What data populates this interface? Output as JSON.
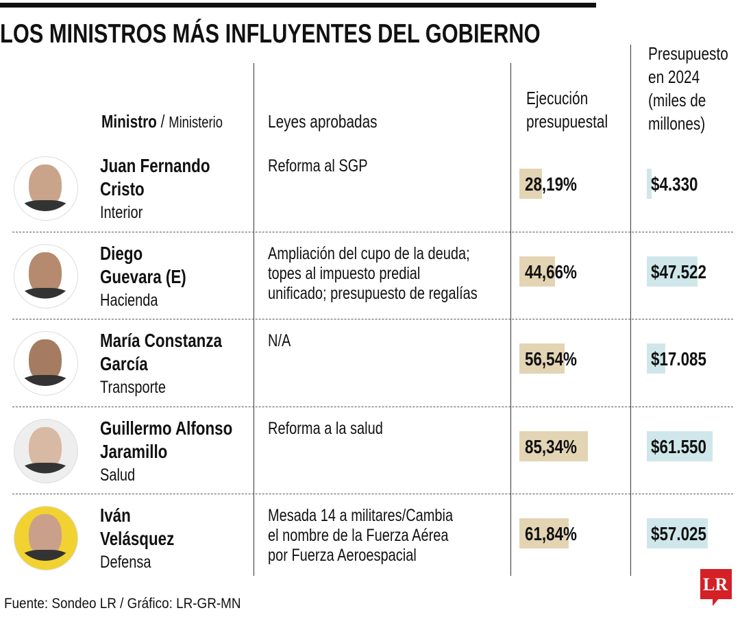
{
  "header": {
    "title": "LOS MINISTROS MÁS INFLUYENTES DEL GOBIERNO",
    "col_ministro": "Ministro",
    "col_sep": "/",
    "col_ministerio": "Ministerio",
    "col_leyes": "Leyes aprobadas",
    "col_ejecucion": [
      "Ejecución",
      "presupuestal"
    ],
    "col_presupuesto": [
      "Presupuesto",
      "en 2024",
      "(miles de",
      "millones)"
    ]
  },
  "table": {
    "rows": [
      {
        "name": [
          "Juan Fernando",
          "Cristo"
        ],
        "ministry": "Interior",
        "laws": [
          "Reforma al SGP"
        ],
        "execution": {
          "value": 28.19,
          "label": "28,19%"
        },
        "budget": {
          "value": 4330,
          "label": "$4.330"
        }
      },
      {
        "name": [
          "Diego",
          "Guevara (E)"
        ],
        "ministry": "Hacienda",
        "laws": [
          "Ampliación del cupo de la deuda;",
          "topes al impuesto predial",
          "unificado; presupuesto de regalías"
        ],
        "execution": {
          "value": 44.66,
          "label": "44,66%"
        },
        "budget": {
          "value": 47522,
          "label": "$47.522"
        }
      },
      {
        "name": [
          "María Constanza",
          "García"
        ],
        "ministry": "Transporte",
        "laws": [
          "N/A"
        ],
        "execution": {
          "value": 56.54,
          "label": "56,54%"
        },
        "budget": {
          "value": 17085,
          "label": "$17.085"
        }
      },
      {
        "name": [
          "Guillermo Alfonso",
          "Jaramillo"
        ],
        "ministry": "Salud",
        "laws": [
          "Reforma a la salud"
        ],
        "execution": {
          "value": 85.34,
          "label": "85,34%"
        },
        "budget": {
          "value": 61550,
          "label": "$61.550"
        }
      },
      {
        "name": [
          "Iván",
          "Velásquez"
        ],
        "ministry": "Defensa",
        "laws": [
          "Mesada 14 a militares/Cambia",
          "el nombre de la Fuerza Aérea",
          "por Fuerza Aeroespacial"
        ],
        "execution": {
          "value": 61.84,
          "label": "61,84%"
        },
        "budget": {
          "value": 57025,
          "label": "$57.025"
        }
      }
    ]
  },
  "footer": {
    "source": "Fuente: Sondeo LR / Gráfico: LR-GR-MN",
    "logo": "LR"
  }
}
